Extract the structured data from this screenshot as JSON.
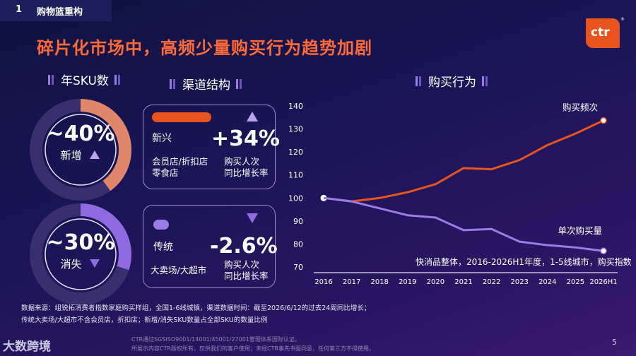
{
  "header": {
    "section_number": "1",
    "section_title": "购物篮重构"
  },
  "headline": "碎片化市场中，高频少量购买行为趋势加剧",
  "logo": {
    "text": "ctr",
    "mark": "®"
  },
  "sections": {
    "sku": "年SKU数",
    "channel": "渠道结构",
    "behavior": "购买行为"
  },
  "rings": [
    {
      "value": "~40%",
      "label": "新增",
      "fraction": 0.4,
      "color": "#e0866a"
    },
    {
      "value": "~30%",
      "label": "消失",
      "fraction": 0.3,
      "color": "#8f6ae0"
    }
  ],
  "channels": [
    {
      "label": "新兴",
      "pct": "+34%",
      "stores": "会员店/折扣店\n零食店",
      "metric": "购买人次\n同比增长率"
    },
    {
      "label": "传统",
      "pct": "-2.6%",
      "stores": "大卖场/大超市",
      "metric": "购买人次\n同比增长率"
    }
  ],
  "chart_data": {
    "type": "line",
    "x": [
      "2016",
      "2017",
      "2018",
      "2019",
      "2020",
      "2021",
      "2022",
      "2023",
      "2024",
      "2025",
      "2026H1"
    ],
    "ylim": [
      70,
      140
    ],
    "yticks": [
      70,
      80,
      90,
      100,
      110,
      120,
      130,
      140
    ],
    "series": [
      {
        "name": "购买频次",
        "color": "#e8541e",
        "values": [
          100,
          98.5,
          100,
          102.5,
          106,
          113,
          112.5,
          116.5,
          123,
          128,
          133.7
        ]
      },
      {
        "name": "单次购买量",
        "color": "#9b7be8",
        "values": [
          100,
          98.5,
          95.5,
          92.5,
          91.5,
          86,
          86.5,
          81,
          79.5,
          78.5,
          77
        ]
      }
    ],
    "note": "快消品整体，2016-2026H1年度，1-5线城市，购买指数"
  },
  "footer": {
    "line1": "数据来源：组锐拓消费者指数家庭购买样组，全国1-6线城镇，渠道数据时间：截至2026/6/12的过去24周同比增长；",
    "line2": "传统大卖场/大超市不含会员店，折扣店；新增/消失SKU数量占全部SKU的数量比例",
    "legal1": "CTR通过SGSISO9001/14001/45001/27001管理体系国际认证。",
    "legal2": "所展示内容CTR版权所有，仅供我们的客户使用；未经CTR事先书面同意，任何第三方不得使用。",
    "brand": "大数跨境",
    "page": "5"
  }
}
